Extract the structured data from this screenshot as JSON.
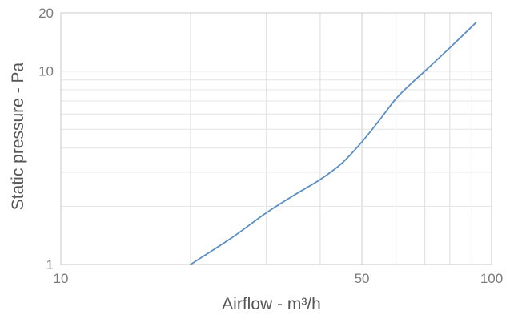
{
  "chart_data": {
    "type": "line",
    "title": "",
    "xlabel": "Airflow  - m³/h",
    "ylabel": "Static pressure  - Pa",
    "x_scale": "log",
    "y_scale": "log",
    "xlim": [
      10,
      100
    ],
    "ylim": [
      1,
      20
    ],
    "x_ticks": [
      {
        "value": 10,
        "label": "10"
      },
      {
        "value": 50,
        "label": "50"
      },
      {
        "value": 100,
        "label": "100"
      }
    ],
    "y_ticks": [
      {
        "value": 1,
        "label": "1"
      },
      {
        "value": 10,
        "label": "10"
      },
      {
        "value": 20,
        "label": "20"
      }
    ],
    "grid": true,
    "legend": "none",
    "series": [
      {
        "color": "#5a8fc2",
        "x": [
          20,
          25,
          30,
          35,
          40,
          45,
          50,
          55,
          60,
          65,
          70,
          80,
          92
        ],
        "y": [
          1.0,
          1.38,
          1.85,
          2.3,
          2.75,
          3.35,
          4.3,
          5.6,
          7.2,
          8.6,
          10.0,
          13.2,
          17.8
        ]
      }
    ]
  }
}
